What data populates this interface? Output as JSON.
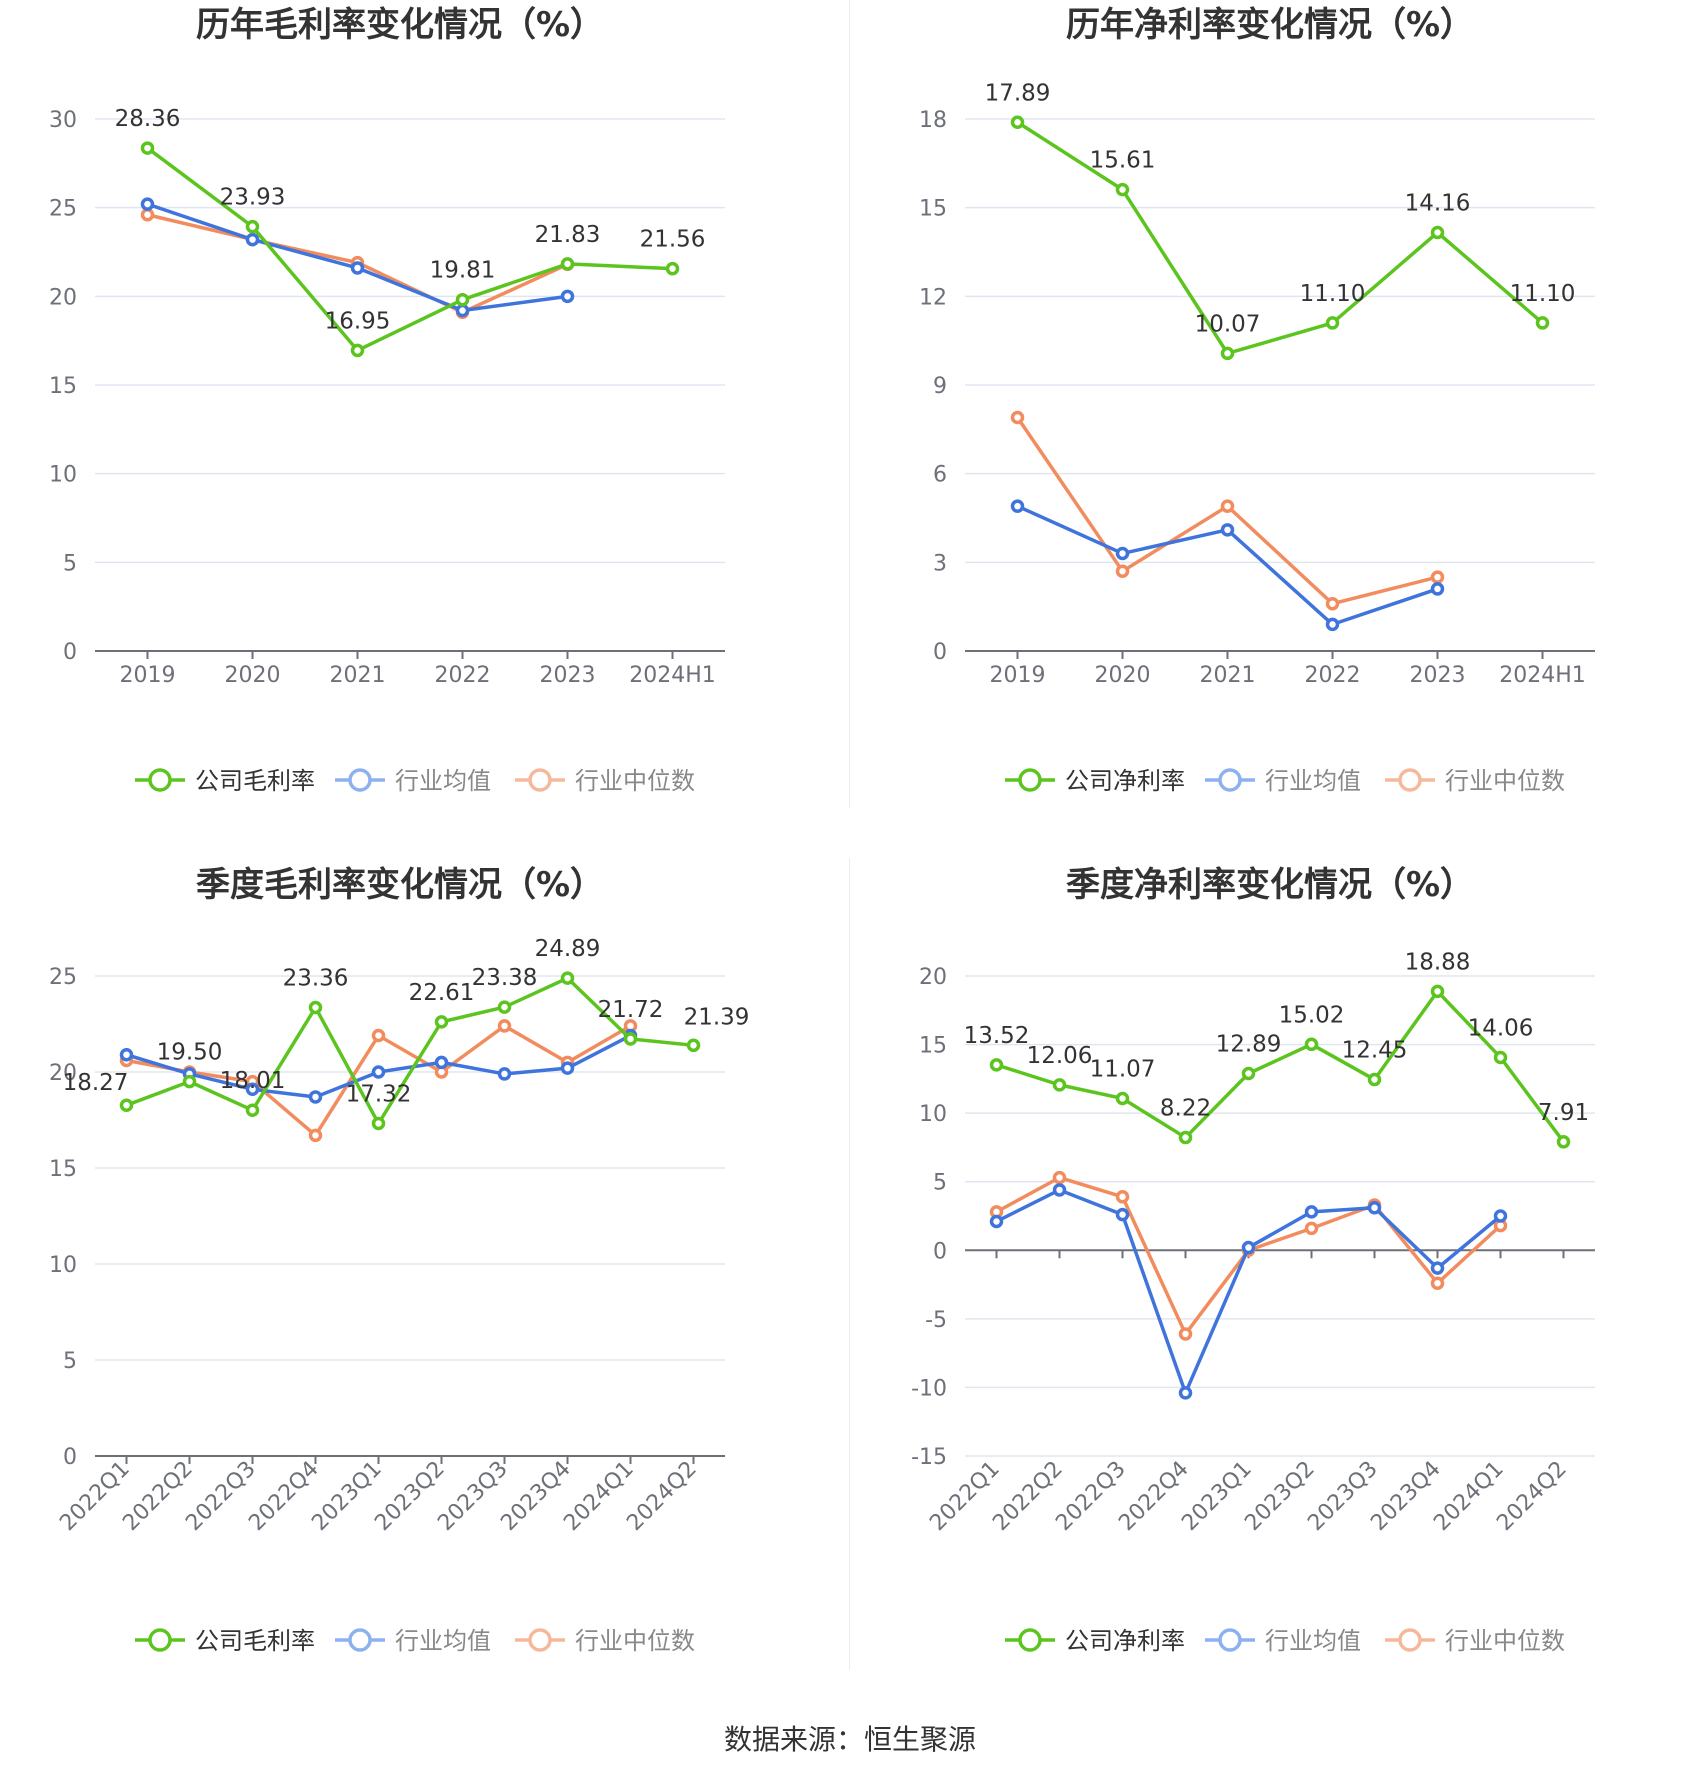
{
  "source_text": "数据来源：恒生聚源",
  "colors": {
    "company": "#5cc41e",
    "avg": "#3f74dc",
    "median": "#f28c5e",
    "legend_avg": "#8db0ef",
    "legend_median": "#f6b89a"
  },
  "chart_data": [
    {
      "type": "line",
      "title": "历年毛利率变化情况（%）",
      "categories": [
        "2019",
        "2020",
        "2021",
        "2022",
        "2023",
        "2024H1"
      ],
      "ylim": [
        0,
        30
      ],
      "yticks": [
        "0",
        "5",
        "10",
        "15",
        "20",
        "25",
        "30"
      ],
      "grid": true,
      "legend": "bottom",
      "series": [
        {
          "name": "公司毛利率",
          "values": [
            28.36,
            23.93,
            16.95,
            19.81,
            21.83,
            21.56
          ],
          "labels": [
            "28.36",
            "23.93",
            "16.95",
            "19.81",
            "21.83",
            "21.56"
          ]
        },
        {
          "name": "行业均值",
          "values": [
            25.2,
            23.2,
            21.6,
            19.2,
            20.0,
            null
          ]
        },
        {
          "name": "行业中位数",
          "values": [
            24.6,
            23.2,
            21.9,
            19.1,
            21.8,
            null
          ]
        }
      ]
    },
    {
      "type": "line",
      "title": "历年净利率变化情况（%）",
      "categories": [
        "2019",
        "2020",
        "2021",
        "2022",
        "2023",
        "2024H1"
      ],
      "ylim": [
        0,
        18
      ],
      "yticks": [
        "0",
        "3",
        "6",
        "9",
        "12",
        "15",
        "18"
      ],
      "grid": true,
      "legend": "bottom",
      "series": [
        {
          "name": "公司净利率",
          "values": [
            17.89,
            15.61,
            10.07,
            11.1,
            14.16,
            11.1
          ],
          "labels": [
            "17.89",
            "15.61",
            "10.07",
            "11.10",
            "14.16",
            "11.10"
          ]
        },
        {
          "name": "行业均值",
          "values": [
            4.9,
            3.3,
            4.1,
            0.9,
            2.1,
            null
          ]
        },
        {
          "name": "行业中位数",
          "values": [
            7.9,
            2.7,
            4.9,
            1.6,
            2.5,
            null
          ]
        }
      ]
    },
    {
      "type": "line",
      "title": "季度毛利率变化情况（%）",
      "categories": [
        "2022Q1",
        "2022Q2",
        "2022Q3",
        "2022Q4",
        "2023Q1",
        "2023Q2",
        "2023Q3",
        "2023Q4",
        "2024Q1",
        "2024Q2"
      ],
      "ylim": [
        0,
        25
      ],
      "yticks": [
        "0",
        "5",
        "10",
        "15",
        "20",
        "25"
      ],
      "grid": true,
      "legend": "bottom",
      "series": [
        {
          "name": "公司毛利率",
          "values": [
            18.27,
            19.5,
            18.01,
            23.36,
            17.32,
            22.61,
            23.38,
            24.89,
            21.72,
            21.39
          ],
          "labels": [
            "18.27",
            "19.50",
            "18.01",
            "23.36",
            "17.32",
            "22.61",
            "23.38",
            "24.89",
            "21.72",
            "21.39"
          ]
        },
        {
          "name": "行业均值",
          "values": [
            20.9,
            19.9,
            19.1,
            18.7,
            20.0,
            20.5,
            19.9,
            20.2,
            21.9,
            null
          ]
        },
        {
          "name": "行业中位数",
          "values": [
            20.6,
            20.0,
            19.5,
            16.7,
            21.9,
            20.0,
            22.4,
            20.5,
            22.4,
            null
          ]
        }
      ]
    },
    {
      "type": "line",
      "title": "季度净利率变化情况（%）",
      "categories": [
        "2022Q1",
        "2022Q2",
        "2022Q3",
        "2022Q4",
        "2023Q1",
        "2023Q2",
        "2023Q3",
        "2023Q4",
        "2024Q1",
        "2024Q2"
      ],
      "ylim": [
        -15,
        20
      ],
      "yticks": [
        "-15",
        "-10",
        "-5",
        "0",
        "5",
        "10",
        "15",
        "20"
      ],
      "grid": true,
      "legend": "bottom",
      "series": [
        {
          "name": "公司净利率",
          "values": [
            13.52,
            12.06,
            11.07,
            8.22,
            12.89,
            15.02,
            12.45,
            18.88,
            14.06,
            7.91
          ],
          "labels": [
            "13.52",
            "12.06",
            "11.07",
            "8.22",
            "12.89",
            "15.02",
            "12.45",
            "18.88",
            "14.06",
            "7.91"
          ]
        },
        {
          "name": "行业均值",
          "values": [
            2.1,
            4.4,
            2.6,
            -10.4,
            0.2,
            2.8,
            3.1,
            -1.3,
            2.5,
            null
          ]
        },
        {
          "name": "行业中位数",
          "values": [
            2.8,
            5.3,
            3.9,
            -6.1,
            0.0,
            1.6,
            3.3,
            -2.4,
            1.8,
            null
          ]
        }
      ]
    }
  ]
}
